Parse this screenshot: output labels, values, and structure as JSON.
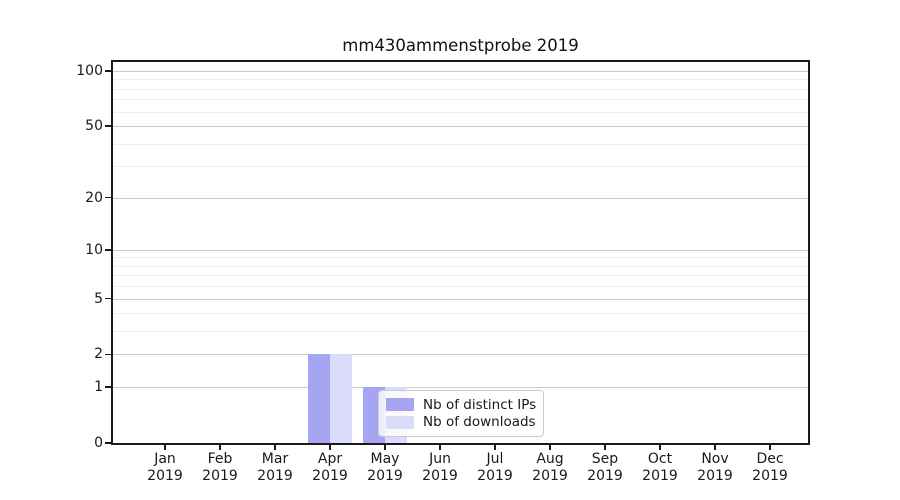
{
  "chart_data": {
    "type": "bar",
    "title": "mm430ammenstprobe 2019",
    "categories": [
      {
        "month": "Jan",
        "year": "2019"
      },
      {
        "month": "Feb",
        "year": "2019"
      },
      {
        "month": "Mar",
        "year": "2019"
      },
      {
        "month": "Apr",
        "year": "2019"
      },
      {
        "month": "May",
        "year": "2019"
      },
      {
        "month": "Jun",
        "year": "2019"
      },
      {
        "month": "Jul",
        "year": "2019"
      },
      {
        "month": "Aug",
        "year": "2019"
      },
      {
        "month": "Sep",
        "year": "2019"
      },
      {
        "month": "Oct",
        "year": "2019"
      },
      {
        "month": "Nov",
        "year": "2019"
      },
      {
        "month": "Dec",
        "year": "2019"
      }
    ],
    "series": [
      {
        "name": "Nb of distinct IPs",
        "color": "#a5a5f2",
        "values": [
          0,
          0,
          0,
          2,
          1,
          0,
          0,
          0,
          0,
          0,
          0,
          0
        ]
      },
      {
        "name": "Nb of downloads",
        "color": "#dbdbfa",
        "values": [
          0,
          0,
          0,
          2,
          1,
          0,
          0,
          0,
          0,
          0,
          0,
          0
        ]
      }
    ],
    "yscale": "log1p",
    "ylim": [
      0,
      112
    ],
    "y_major_ticks": [
      100,
      50,
      20,
      10,
      5,
      2,
      1,
      0
    ],
    "y_minor_ticks": [
      90,
      80,
      70,
      60,
      40,
      30,
      9,
      8,
      7,
      6,
      4,
      3
    ],
    "grid": "both",
    "legend_location": "lower center"
  },
  "colors": {
    "spine": "#1a1a1a",
    "grid_major": "#c9c9c9",
    "grid_minor": "#eeeeee",
    "text": "#1a1a1a",
    "legend_border": "#cccccc",
    "legend_bg": "rgba(255,255,255,0.8)"
  }
}
